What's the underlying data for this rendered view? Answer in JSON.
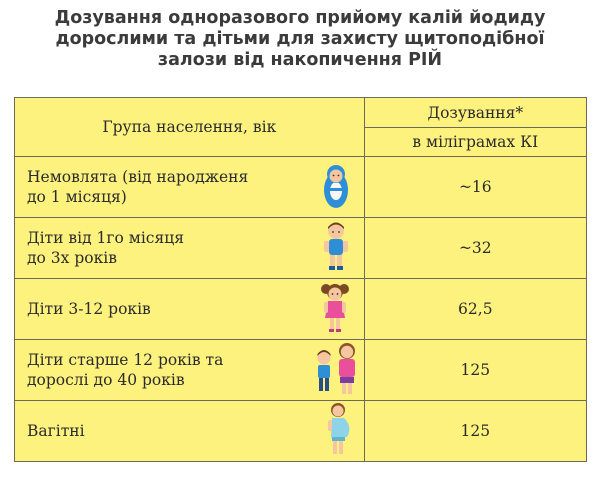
{
  "title": {
    "line1": "Дозування одноразового прийому калій йодиду",
    "line2": "дорослими та дітьми для захисту щитоподібної",
    "line3": "залози від накопичення РІЙ"
  },
  "table": {
    "header_group": "Група населення, вік",
    "header_dose": "Дозування*",
    "header_unit": "в міліграмах КІ",
    "rows": [
      {
        "group_line1": "Немовлята (від народженя",
        "group_line2": "до 1 місяця)",
        "dose": "~16",
        "icon": "baby-icon"
      },
      {
        "group_line1": "Діти від 1го місяця",
        "group_line2": "до 3х років",
        "dose": "~32",
        "icon": "toddler-icon"
      },
      {
        "group_line1": "Діти 3-12 років",
        "group_line2": "",
        "dose": "62,5",
        "icon": "girl-icon"
      },
      {
        "group_line1": "Діти старше 12 років та",
        "group_line2": "дорослі до 40 років",
        "dose": "125",
        "icon": "teen-and-adult-icon"
      },
      {
        "group_line1": "Вагітні",
        "group_line2": "",
        "dose": "125",
        "icon": "pregnant-woman-icon"
      }
    ]
  },
  "colors": {
    "table_fill": "#fdf27e",
    "border": "#6d6a5a",
    "title_text": "#3b3b3b"
  }
}
